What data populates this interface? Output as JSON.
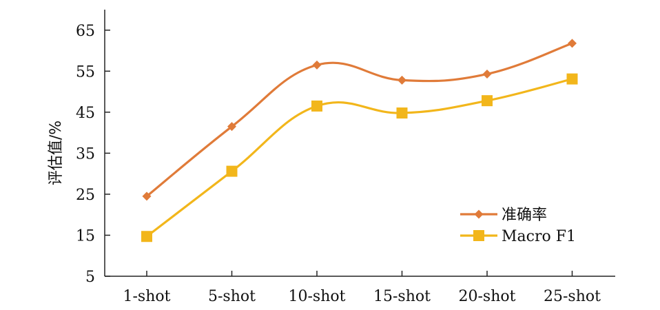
{
  "chart_data": {
    "type": "line",
    "title": "",
    "xlabel": "",
    "ylabel": "评估值/%",
    "categories": [
      "1-shot",
      "5-shot",
      "10-shot",
      "15-shot",
      "20-shot",
      "25-shot"
    ],
    "ylim": [
      5,
      70
    ],
    "yticks": [
      5,
      15,
      25,
      35,
      45,
      55,
      65
    ],
    "grid": false,
    "legend_position": "bottom-right",
    "smooth": true,
    "series": [
      {
        "name": "准确率",
        "values": [
          24.5,
          41.5,
          56.5,
          52.8,
          54.3,
          61.8
        ],
        "color": "#E07B39",
        "marker": "diamond"
      },
      {
        "name": "Macro F1",
        "values": [
          14.7,
          30.6,
          46.5,
          44.8,
          47.8,
          53.1
        ],
        "color": "#F2B61B",
        "marker": "square"
      }
    ]
  }
}
